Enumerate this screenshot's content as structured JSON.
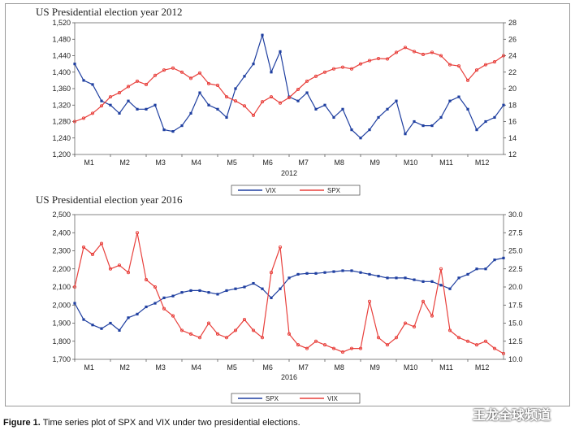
{
  "caption": {
    "label": "Figure 1.",
    "text": "Time series plot of SPX and VIX under two presidential elections."
  },
  "watermark": {
    "text": "王龙全球频道"
  },
  "colors": {
    "blue": "#1f3fa0",
    "red": "#e8403c"
  },
  "chart_data": [
    {
      "type": "line",
      "title": "US Presidential election year 2012",
      "xlabel": "2012",
      "categories": [
        "M1",
        "M2",
        "M3",
        "M4",
        "M5",
        "M6",
        "M7",
        "M8",
        "M9",
        "M10",
        "M11",
        "M12"
      ],
      "left_ticks": [
        "1,200",
        "1,240",
        "1,280",
        "1,320",
        "1,360",
        "1,400",
        "1,440",
        "1,480",
        "1,520"
      ],
      "right_ticks": [
        "12",
        "14",
        "16",
        "18",
        "20",
        "22",
        "24",
        "26",
        "28"
      ],
      "ylim_left": [
        1200,
        1520
      ],
      "ylim_right": [
        12,
        28
      ],
      "legend": [
        "VIX",
        "SPX"
      ],
      "series": [
        {
          "name": "VIX",
          "axis": "right",
          "color": "#1f3fa0",
          "x": [
            0.0,
            0.25,
            0.5,
            0.75,
            1.0,
            1.25,
            1.5,
            1.75,
            2.0,
            2.25,
            2.5,
            2.75,
            3.0,
            3.25,
            3.5,
            3.75,
            4.0,
            4.25,
            4.5,
            4.75,
            5.0,
            5.25,
            5.5,
            5.75,
            6.0,
            6.25,
            6.5,
            6.75,
            7.0,
            7.25,
            7.5,
            7.75,
            8.0,
            8.25,
            8.5,
            8.75,
            9.0,
            9.25,
            9.5,
            9.75,
            10.0,
            10.25,
            10.5,
            10.75,
            11.0,
            11.25,
            11.5,
            11.75,
            12.0
          ],
          "values": [
            23.0,
            21.0,
            20.5,
            18.5,
            18.0,
            17.0,
            18.5,
            17.5,
            17.5,
            18.0,
            15.0,
            14.8,
            15.5,
            17.0,
            19.5,
            18.0,
            17.5,
            16.5,
            20.0,
            21.5,
            23.0,
            26.5,
            22.0,
            24.5,
            19.0,
            18.5,
            19.5,
            17.5,
            18.0,
            16.5,
            17.5,
            15.0,
            14.0,
            15.0,
            16.5,
            17.5,
            18.5,
            14.5,
            16.0,
            15.5,
            15.5,
            16.5,
            18.5,
            19.0,
            17.5,
            15.0,
            16.0,
            16.5,
            18.0
          ]
        },
        {
          "name": "SPX",
          "axis": "left",
          "color": "#e8403c",
          "x": [
            0.0,
            0.25,
            0.5,
            0.75,
            1.0,
            1.25,
            1.5,
            1.75,
            2.0,
            2.25,
            2.5,
            2.75,
            3.0,
            3.25,
            3.5,
            3.75,
            4.0,
            4.25,
            4.5,
            4.75,
            5.0,
            5.25,
            5.5,
            5.75,
            6.0,
            6.25,
            6.5,
            6.75,
            7.0,
            7.25,
            7.5,
            7.75,
            8.0,
            8.25,
            8.5,
            8.75,
            9.0,
            9.25,
            9.5,
            9.75,
            10.0,
            10.25,
            10.5,
            10.75,
            11.0,
            11.25,
            11.5,
            11.75,
            12.0
          ],
          "values": [
            1280,
            1288,
            1300,
            1318,
            1340,
            1350,
            1365,
            1378,
            1370,
            1392,
            1405,
            1410,
            1400,
            1385,
            1398,
            1372,
            1368,
            1340,
            1330,
            1318,
            1295,
            1328,
            1340,
            1325,
            1338,
            1358,
            1378,
            1390,
            1400,
            1408,
            1412,
            1408,
            1420,
            1428,
            1433,
            1432,
            1448,
            1460,
            1450,
            1443,
            1448,
            1440,
            1418,
            1415,
            1380,
            1405,
            1418,
            1425,
            1440
          ]
        }
      ]
    },
    {
      "type": "line",
      "title": "US Presidential election year 2016",
      "xlabel": "2016",
      "categories": [
        "M1",
        "M2",
        "M3",
        "M4",
        "M5",
        "M6",
        "M7",
        "M8",
        "M9",
        "M10",
        "M11",
        "M12"
      ],
      "left_ticks": [
        "1,700",
        "1,800",
        "1,900",
        "2,000",
        "2,100",
        "2,200",
        "2,300",
        "2,400",
        "2,500"
      ],
      "right_ticks": [
        "10.0",
        "12.5",
        "15.0",
        "17.5",
        "20.0",
        "22.5",
        "25.0",
        "27.5",
        "30.0"
      ],
      "ylim_left": [
        1700,
        2500
      ],
      "ylim_right": [
        10,
        30
      ],
      "legend": [
        "SPX",
        "VIX"
      ],
      "series": [
        {
          "name": "SPX",
          "axis": "left",
          "color": "#1f3fa0",
          "x": [
            0.0,
            0.25,
            0.5,
            0.75,
            1.0,
            1.25,
            1.5,
            1.75,
            2.0,
            2.25,
            2.5,
            2.75,
            3.0,
            3.25,
            3.5,
            3.75,
            4.0,
            4.25,
            4.5,
            4.75,
            5.0,
            5.25,
            5.5,
            5.75,
            6.0,
            6.25,
            6.5,
            6.75,
            7.0,
            7.25,
            7.5,
            7.75,
            8.0,
            8.25,
            8.5,
            8.75,
            9.0,
            9.25,
            9.5,
            9.75,
            10.0,
            10.25,
            10.5,
            10.75,
            11.0,
            11.25,
            11.5,
            11.75,
            12.0
          ],
          "values": [
            2010,
            1920,
            1890,
            1870,
            1900,
            1860,
            1930,
            1950,
            1990,
            2010,
            2040,
            2050,
            2070,
            2080,
            2080,
            2070,
            2060,
            2080,
            2090,
            2100,
            2120,
            2090,
            2040,
            2090,
            2150,
            2170,
            2175,
            2175,
            2180,
            2185,
            2190,
            2190,
            2180,
            2170,
            2160,
            2150,
            2150,
            2150,
            2140,
            2130,
            2130,
            2110,
            2090,
            2150,
            2170,
            2200,
            2200,
            2250,
            2260
          ]
        },
        {
          "name": "VIX",
          "axis": "right",
          "color": "#e8403c",
          "x": [
            0.0,
            0.25,
            0.5,
            0.75,
            1.0,
            1.25,
            1.5,
            1.75,
            2.0,
            2.25,
            2.5,
            2.75,
            3.0,
            3.25,
            3.5,
            3.75,
            4.0,
            4.25,
            4.5,
            4.75,
            5.0,
            5.25,
            5.5,
            5.75,
            6.0,
            6.25,
            6.5,
            6.75,
            7.0,
            7.25,
            7.5,
            7.75,
            8.0,
            8.25,
            8.5,
            8.75,
            9.0,
            9.25,
            9.5,
            9.75,
            10.0,
            10.25,
            10.5,
            10.75,
            11.0,
            11.25,
            11.5,
            11.75,
            12.0
          ],
          "values": [
            20.0,
            25.5,
            24.5,
            26.0,
            22.5,
            23.0,
            22.0,
            27.5,
            21.0,
            20.0,
            17.0,
            16.0,
            14.0,
            13.5,
            13.0,
            15.0,
            13.5,
            13.0,
            14.0,
            15.5,
            14.0,
            13.0,
            22.0,
            25.5,
            13.5,
            12.0,
            11.5,
            12.5,
            12.0,
            11.5,
            11.0,
            11.5,
            11.5,
            18.0,
            13.0,
            12.0,
            13.0,
            15.0,
            14.5,
            18.0,
            16.0,
            22.5,
            14.0,
            13.0,
            12.5,
            12.0,
            12.5,
            11.5,
            10.8
          ]
        }
      ]
    }
  ]
}
